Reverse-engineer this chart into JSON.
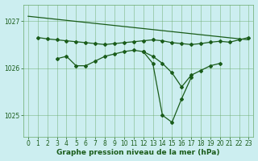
{
  "background_color": "#cceef0",
  "plot_bg_color": "#cceef0",
  "grid_color": "#6aaa6a",
  "line_color": "#1a5c1a",
  "title": "Graphe pression niveau de la mer (hPa)",
  "title_fontsize": 6.5,
  "tick_fontsize": 5.5,
  "ylim": [
    1024.55,
    1027.35
  ],
  "xlim": [
    -0.5,
    23.5
  ],
  "yticks": [
    1025,
    1026,
    1027
  ],
  "xticks": [
    0,
    1,
    2,
    3,
    4,
    5,
    6,
    7,
    8,
    9,
    10,
    11,
    12,
    13,
    14,
    15,
    16,
    17,
    18,
    19,
    20,
    21,
    22,
    23
  ],
  "line_diagonal": {
    "x": [
      0,
      23
    ],
    "y": [
      1027.1,
      1026.6
    ]
  },
  "line_flat": {
    "x": [
      1,
      2,
      3,
      4,
      5,
      6,
      7,
      8,
      9,
      10,
      11,
      12,
      13,
      14,
      15,
      16,
      17,
      18,
      19,
      20,
      21,
      22,
      23
    ],
    "y": [
      1026.65,
      1026.62,
      1026.6,
      1026.58,
      1026.56,
      1026.54,
      1026.52,
      1026.5,
      1026.52,
      1026.54,
      1026.56,
      1026.58,
      1026.6,
      1026.58,
      1026.54,
      1026.52,
      1026.5,
      1026.52,
      1026.55,
      1026.57,
      1026.55,
      1026.6,
      1026.65
    ]
  },
  "line_mid": {
    "x": [
      3,
      4,
      5,
      6,
      7,
      8,
      9,
      10,
      11,
      12,
      13,
      14,
      15,
      16,
      17,
      18,
      19,
      20
    ],
    "y": [
      1026.2,
      1026.25,
      1026.05,
      1026.05,
      1026.15,
      1026.25,
      1026.3,
      1026.35,
      1026.38,
      1026.35,
      1026.25,
      1026.1,
      1025.9,
      1025.6,
      1025.85,
      1025.95,
      1026.05,
      1026.1
    ]
  },
  "line_dip": {
    "x": [
      12,
      13,
      14,
      15,
      16,
      17
    ],
    "y": [
      1026.35,
      1026.1,
      1025.0,
      1024.85,
      1025.35,
      1025.8
    ]
  },
  "line_deep": {
    "x": [
      13,
      14,
      15,
      16,
      17
    ],
    "y": [
      1026.05,
      1025.0,
      1024.82,
      1025.3,
      1025.85
    ]
  }
}
